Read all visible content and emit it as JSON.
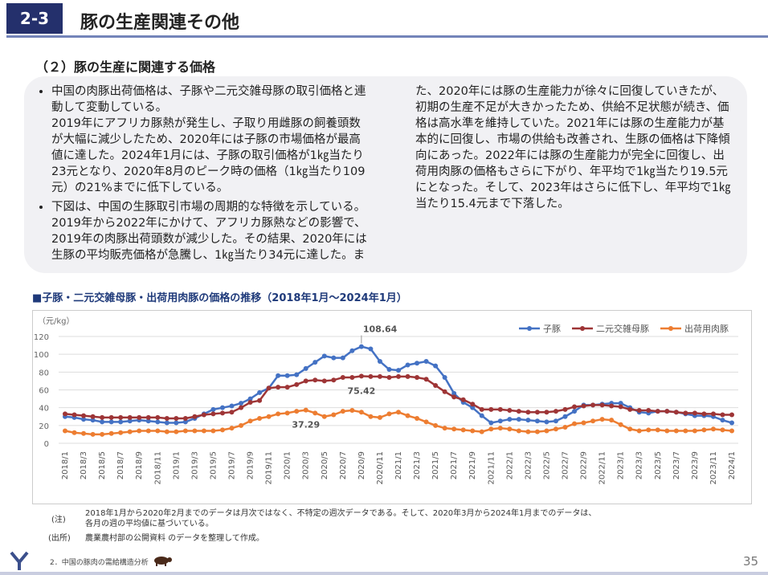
{
  "header": {
    "number": "2-3",
    "title": "豚の生産関連その他"
  },
  "subtitle": "（２）豚の生産に関連する価格",
  "bullets": [
    [
      "中国の肉豚出荷価格は、子豚や二元交雑母豚の取引価格と連動して変動している。",
      "2019年にアフリカ豚熱が発生し、子取り用雌豚の飼養頭数が大幅に減少したため、2020年には子豚の市場価格が最高値に達した。2024年1月には、子豚の取引価格が1㎏当たり23元となり、2020年8月のピーク時の価格（1㎏当たり109元）の21%までに低下している。"
    ],
    [
      "下図は、中国の生豚取引市場の周期的な特徴を示している。2019年から2022年にかけて、アフリカ豚熱などの影響で、2019年の肉豚出荷頭数が減少した。その結果、2020年には生豚の平均販売価格が急騰し、1㎏当たり34元に達した。また、2020年には豚の生産能力が徐々に回復していきたが、初期の生産不足が大きかったため、供給不足状態が続き、価格は高水準を維持していた。2021年には豚の生産能力が基本的に回復し、市場の供給も改善され、生豚の価格は下降傾向にあった。2022年には豚の生産能力が完全に回復し、出荷用肉豚の価格もさらに下がり、年平均で1㎏当たり19.5元にとなった。そして、2023年はさらに低下し、年平均で1㎏当たり15.4元まで下落した。"
    ]
  ],
  "chart_data": {
    "type": "line",
    "title": "■子豚・二元交雑母豚・出荷用肉豚の価格の推移（2018年1月～2024年1月）",
    "y_label": "（元/kg）",
    "categories": [
      "2018/1",
      null,
      "2018/3",
      null,
      "2018/5",
      null,
      "2018/7",
      null,
      "2018/9",
      null,
      "2018/11",
      null,
      "2019/1",
      null,
      "2019/3",
      null,
      "2019/5",
      null,
      "2019/7",
      null,
      "2019/9",
      null,
      "2019/11",
      null,
      "2020/1",
      null,
      "2020/3",
      null,
      "2020/5",
      null,
      "2020/7",
      null,
      "2020/9",
      null,
      "2020/11",
      null,
      "2021/1",
      null,
      "2021/3",
      null,
      "2021/5",
      null,
      "2021/7",
      null,
      "2021/9",
      null,
      "2021/11",
      null,
      "2022/1",
      null,
      "2022/3",
      null,
      "2022/5",
      null,
      "2022/7",
      null,
      "2022/9",
      null,
      "2022/11",
      null,
      "2023/1",
      null,
      "2023/3",
      null,
      "2023/5",
      null,
      "2023/7",
      null,
      "2023/9",
      null,
      "2023/11",
      null,
      "2024/1"
    ],
    "ylim": [
      0,
      120
    ],
    "yticks": [
      0,
      20,
      40,
      60,
      80,
      100,
      120
    ],
    "grid": true,
    "legend": "top-right",
    "series": [
      {
        "name": "子豚",
        "color": "#4472c4",
        "values": [
          30,
          29,
          27,
          26,
          24,
          24,
          24,
          25,
          26,
          25,
          24,
          23,
          23,
          24,
          28,
          33,
          38,
          40,
          42,
          45,
          50,
          57,
          62,
          76,
          76,
          77,
          84,
          91,
          98,
          96,
          96,
          104,
          108.64,
          106,
          92,
          83,
          82,
          88,
          90,
          92,
          87,
          74,
          56,
          46,
          40,
          31,
          23,
          25,
          27,
          27,
          26,
          25,
          24,
          25,
          30,
          36,
          43,
          43,
          44,
          45,
          45,
          40,
          35,
          34,
          36,
          36,
          35,
          33,
          31,
          31,
          30,
          26,
          23
        ],
        "value_labels": [
          null,
          null,
          null,
          null,
          null,
          null,
          null,
          null,
          null,
          null,
          null,
          null,
          null,
          null,
          null,
          null,
          null,
          null,
          null,
          null,
          null,
          null,
          null,
          null,
          null,
          null,
          null,
          null,
          null,
          null,
          null,
          null,
          "108.64",
          null,
          null,
          null,
          null,
          null,
          null,
          null,
          null,
          null,
          null,
          null,
          null,
          null,
          null,
          null,
          null,
          null,
          null,
          null,
          null,
          null,
          null,
          null,
          null,
          null,
          null,
          null,
          null,
          null,
          null,
          null,
          null,
          null,
          null,
          null,
          null,
          null,
          null,
          null,
          null
        ]
      },
      {
        "name": "二元交雑母豚",
        "color": "#9e3536",
        "values": [
          33,
          32,
          31,
          30,
          29,
          29,
          29,
          29,
          29,
          29,
          29,
          28,
          28,
          28,
          30,
          32,
          33,
          34,
          35,
          40,
          46,
          48,
          62,
          63,
          63,
          66,
          70,
          71,
          70,
          71,
          74,
          74,
          75.42,
          75,
          75,
          74,
          75,
          75,
          74,
          72,
          65,
          58,
          52,
          49,
          44,
          38,
          38,
          38,
          37,
          36,
          35,
          35,
          35,
          36,
          38,
          41,
          42,
          43,
          43,
          42,
          41,
          38,
          37,
          37,
          36,
          36,
          35,
          34,
          34,
          33,
          33,
          32,
          32
        ],
        "value_labels": [
          null,
          null,
          null,
          null,
          null,
          null,
          null,
          null,
          null,
          null,
          null,
          null,
          null,
          null,
          null,
          null,
          null,
          null,
          null,
          null,
          null,
          null,
          null,
          null,
          null,
          null,
          null,
          null,
          null,
          null,
          null,
          null,
          "75.42",
          null,
          null,
          null,
          null,
          null,
          null,
          null,
          null,
          null,
          null,
          null,
          null,
          null,
          null,
          null,
          null,
          null,
          null,
          null,
          null,
          null,
          null,
          null,
          null,
          null,
          null,
          null,
          null,
          null,
          null,
          null,
          null,
          null,
          null,
          null,
          null,
          null,
          null,
          null,
          null
        ]
      },
      {
        "name": "出荷用肉豚",
        "color": "#ed7d31",
        "values": [
          14,
          12,
          11,
          10,
          10,
          11,
          12,
          13,
          14,
          14,
          14,
          13,
          13,
          14,
          14,
          14,
          14,
          15,
          17,
          20,
          25,
          28,
          30,
          33,
          34,
          36,
          37.29,
          34,
          30,
          32,
          36,
          37,
          35,
          30,
          29,
          33,
          35,
          31,
          28,
          24,
          20,
          17,
          16,
          15,
          14,
          13,
          16,
          17,
          16,
          14,
          13,
          13,
          14,
          16,
          18,
          22,
          23,
          25,
          27,
          26,
          21,
          16,
          14,
          15,
          15,
          14,
          14,
          14,
          14,
          15,
          16,
          15,
          14
        ],
        "value_labels": [
          null,
          null,
          null,
          null,
          null,
          null,
          null,
          null,
          null,
          null,
          null,
          null,
          null,
          null,
          null,
          null,
          null,
          null,
          null,
          null,
          null,
          null,
          null,
          null,
          null,
          null,
          "37.29",
          null,
          null,
          null,
          null,
          null,
          null,
          null,
          null,
          null,
          null,
          null,
          null,
          null,
          null,
          null,
          null,
          null,
          null,
          null,
          null,
          null,
          null,
          null,
          null,
          null,
          null,
          null,
          null,
          null,
          null,
          null,
          null,
          null,
          null,
          null,
          null,
          null,
          null,
          null,
          null,
          null,
          null,
          null,
          null,
          null,
          null
        ]
      }
    ]
  },
  "notes": {
    "note_label": "(注)",
    "note_lines": [
      "2018年1月から2020年2月までのデータは月次ではなく、不特定の週次データである。そして、2020年3月から2024年1月までのデータは、",
      "各月の週の平均値に基づいている。"
    ],
    "source_label": "(出所)",
    "source": "農業農村部の公開資料 のデータを整理して作成。"
  },
  "footer": {
    "section": "2．中国の豚肉の需給構造分析",
    "page": "35"
  }
}
